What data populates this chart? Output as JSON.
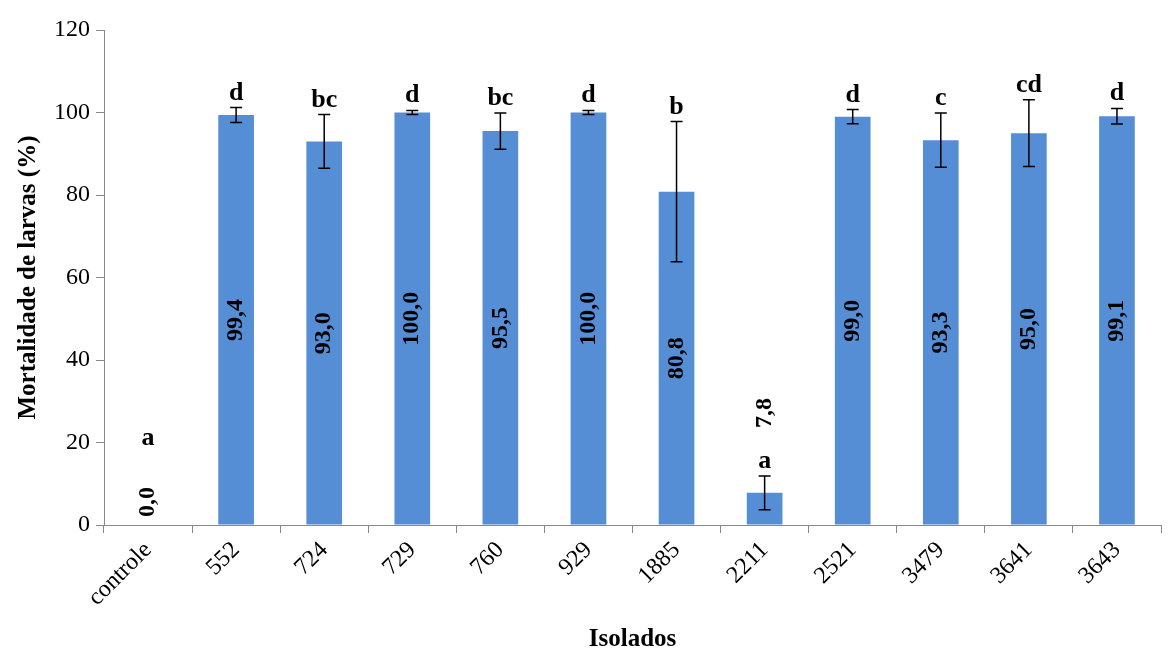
{
  "chart_data": {
    "type": "bar",
    "xlabel": "Isolados",
    "ylabel": "Mortalidade de larvas (%)",
    "categories": [
      "controle",
      "552",
      "724",
      "729",
      "760",
      "929",
      "1885",
      "2211",
      "2521",
      "3479",
      "3641",
      "3643"
    ],
    "values": [
      0,
      99.4,
      93,
      100,
      95.5,
      100,
      80.8,
      7.8,
      99,
      93.3,
      95,
      99.1
    ],
    "value_labels": [
      "0,0",
      "99,4",
      "93,0",
      "100,0",
      "95,5",
      "100,0",
      "80,8",
      "7,8",
      "99,0",
      "93,3",
      "95,0",
      "99,1"
    ],
    "errors": [
      null,
      1.8,
      6.5,
      0.5,
      4.4,
      0.5,
      17,
      4.1,
      1.7,
      6.6,
      8.1,
      1.9
    ],
    "color": "#558ed5",
    "ylim": [
      0,
      120
    ],
    "yticks": [
      0,
      20,
      40,
      60,
      80,
      100,
      120
    ],
    "annotations": [
      {
        "text": "a",
        "x": "controle",
        "y": 0
      },
      {
        "text": "d",
        "x": "552",
        "y": 99.4
      },
      {
        "text": "bc",
        "x": "724",
        "y": 93
      },
      {
        "text": "d",
        "x": "729",
        "y": 100
      },
      {
        "text": "bc",
        "x": "760",
        "y": 95.5
      },
      {
        "text": "d",
        "x": "929",
        "y": 100
      },
      {
        "text": "b",
        "x": "1885",
        "y": 80.8
      },
      {
        "text": "a",
        "x": "2211",
        "y": 7.8
      },
      {
        "text": "d",
        "x": "2521",
        "y": 99
      },
      {
        "text": "c",
        "x": "3479",
        "y": 93.3
      },
      {
        "text": "cd",
        "x": "3641",
        "y": 95
      },
      {
        "text": "d",
        "x": "3643",
        "y": 99.1
      }
    ]
  }
}
